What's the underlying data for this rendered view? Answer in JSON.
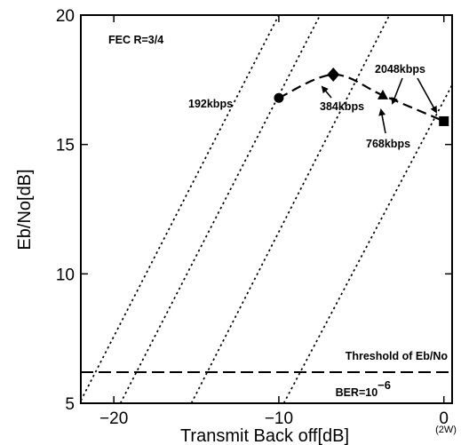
{
  "chart_data": {
    "type": "line",
    "annotation_fec": "FEC R=3/4",
    "xlabel": "Transmit Back off[dB]",
    "ylabel": "Eb/No[dB]",
    "xlim": [
      -22,
      0.5
    ],
    "ylim": [
      5,
      20
    ],
    "x_ticks": [
      -20,
      -10,
      0
    ],
    "x_tick_labels": [
      "−20",
      "−10",
      "0"
    ],
    "x_sublabel_at_0": "(2W)",
    "y_ticks": [
      5,
      10,
      15,
      20
    ],
    "y_tick_labels": [
      "5",
      "10",
      "15",
      "20"
    ],
    "grid": false,
    "operating_curve": {
      "style": "long-dash",
      "x": [
        -10,
        -6.7,
        -3.7,
        0
      ],
      "y": [
        16.8,
        17.7,
        16.9,
        15.9
      ]
    },
    "rate_points": [
      {
        "label": "192kbps",
        "x": -10,
        "y": 16.8,
        "marker": "circle"
      },
      {
        "label": "384kbps",
        "x": -6.7,
        "y": 17.7,
        "marker": "diamond"
      },
      {
        "label": "768kbps",
        "x": -3.7,
        "y": 16.9,
        "marker": "triangle"
      },
      {
        "label": "2048kbps",
        "x": 0,
        "y": 15.9,
        "marker": "square"
      }
    ],
    "limit_lines": {
      "style": "dotted",
      "lines": [
        {
          "x1": -22,
          "y1": 5.1,
          "x2": -10,
          "y2": 20
        },
        {
          "x1": -19.6,
          "y1": 5,
          "x2": -7.5,
          "y2": 20
        },
        {
          "x1": -15.3,
          "y1": 5,
          "x2": -3.3,
          "y2": 20
        },
        {
          "x1": -9.7,
          "y1": 5,
          "x2": 0.5,
          "y2": 17.3
        }
      ]
    },
    "threshold": {
      "label": "Threshold of Eb/No",
      "ber_base": "BER=10",
      "ber_exponent": "−6",
      "y": 6.2
    }
  }
}
